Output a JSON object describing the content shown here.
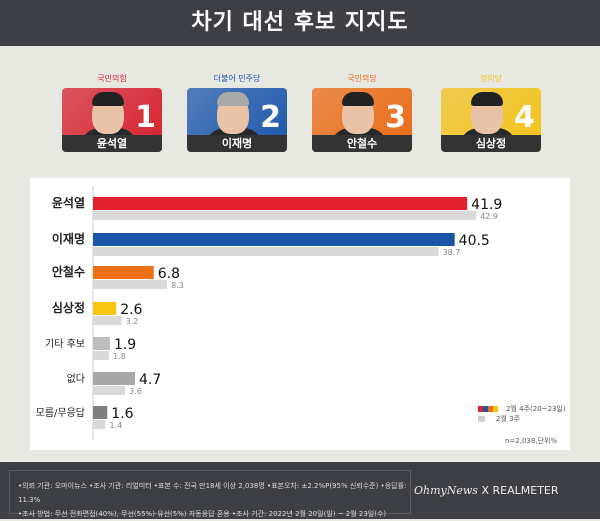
{
  "title": "차기 대선 후보 지지도",
  "candidates": [
    {
      "party": "국민의힘",
      "name": "윤석열",
      "number": "1",
      "color": "#d6202e"
    },
    {
      "party": "더불어 민주당",
      "name": "이재명",
      "number": "2",
      "color": "#1c57ab"
    },
    {
      "party": "국민의당",
      "name": "안철수",
      "number": "3",
      "color": "#ea6a15"
    },
    {
      "party": "정의당",
      "name": "심상정",
      "number": "4",
      "color": "#f3c21a"
    }
  ],
  "chart_data": {
    "type": "bar",
    "orientation": "horizontal",
    "categories": [
      "윤석열",
      "이재명",
      "안철수",
      "심상정",
      "기타 후보",
      "없다",
      "모름/무응답"
    ],
    "series": [
      {
        "name": "2월 4주(20~23일)",
        "values": [
          41.9,
          40.5,
          6.8,
          2.6,
          1.9,
          4.7,
          1.6
        ],
        "colors": [
          "#e3202d",
          "#1b56a6",
          "#ee7014",
          "#f7c40f",
          "#bdbdbd",
          "#a8a8a8",
          "#7f7f7f"
        ]
      },
      {
        "name": "2월 3주",
        "values": [
          42.9,
          38.7,
          8.3,
          3.2,
          1.8,
          3.6,
          1.4
        ],
        "color": "#d9d9d9"
      }
    ],
    "legend_position": "bottom-right",
    "grid": false
  },
  "legend": {
    "current": "2월 4주(20~23일)",
    "previous": "2월 3주"
  },
  "note": "n=2,038,단위%",
  "footer": {
    "line1": "•의뢰 기관: 오마이뉴스 •조사 기관: 리얼미터 •표본 수: 전국 만18세 이상 2,038명 •표본오차: ±2.2%P(95% 신뢰수준) •응답률: 11.3%",
    "line2": "•조사 방법: 무선 전화면접(40%), 무선(55%)·유선(5%) 자동응답 혼용  •조사 기간: 2022년 2월 20일(일) ~ 2월 23일(수)",
    "logo_left": "OhmyNews",
    "logo_x": "X",
    "logo_right": "REALMETER"
  }
}
